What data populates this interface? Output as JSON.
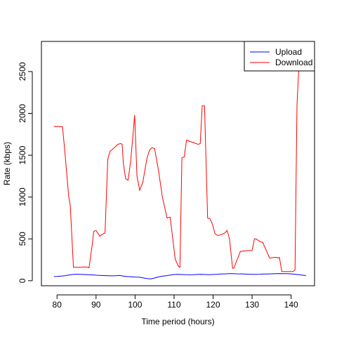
{
  "chart_data": {
    "type": "line",
    "title": "",
    "xlabel": "Time period (hours)",
    "ylabel": "Rate (kbps)",
    "xlim": [
      76,
      146
    ],
    "ylim": [
      -60,
      2860
    ],
    "xticks": [
      80,
      90,
      100,
      110,
      120,
      130,
      140
    ],
    "yticks": [
      0,
      500,
      1000,
      1500,
      2000,
      2500
    ],
    "legend_position": "top-right",
    "grid": false,
    "series": [
      {
        "name": "Upload",
        "color": "#0000ff",
        "x": [
          79.2,
          80,
          81,
          82,
          83,
          84,
          85,
          86,
          87,
          88,
          89,
          90,
          91,
          92,
          93,
          94,
          95,
          96,
          97,
          98,
          99,
          100,
          101,
          102,
          103,
          104,
          105,
          106,
          107,
          108,
          109,
          110,
          111,
          112,
          113,
          114,
          115,
          116,
          117,
          118,
          119,
          120,
          121,
          122,
          123,
          124,
          125,
          126,
          127,
          128,
          129,
          130,
          131,
          132,
          133,
          134,
          135,
          136,
          137,
          138,
          139,
          140,
          141,
          142,
          143,
          143.8
        ],
        "y": [
          50,
          52,
          55,
          60,
          68,
          75,
          78,
          76,
          74,
          72,
          70,
          66,
          64,
          62,
          60,
          58,
          60,
          64,
          55,
          50,
          47,
          44,
          42,
          34,
          26,
          22,
          32,
          46,
          54,
          60,
          68,
          74,
          76,
          74,
          72,
          71,
          72,
          75,
          76,
          74,
          72,
          74,
          77,
          80,
          82,
          84,
          85,
          83,
          82,
          80,
          78,
          76,
          77,
          78,
          80,
          81,
          83,
          84,
          86,
          85,
          84,
          82,
          78,
          72,
          66,
          62
        ]
      },
      {
        "name": "Download",
        "color": "#ff0000",
        "x": [
          79.2,
          79.6,
          80,
          81.4,
          82,
          83,
          83.4,
          84.2,
          85,
          86,
          87,
          87.6,
          88.2,
          89,
          89.4,
          90,
          91,
          91.4,
          92.3,
          93,
          93.6,
          94,
          95.6,
          96.3,
          96.7,
          97,
          97.6,
          98.2,
          98.8,
          99.4,
          99.9,
          100.5,
          101.2,
          102,
          103,
          103.7,
          104.3,
          105,
          106,
          107,
          108.2,
          109,
          109.8,
          110.3,
          111,
          111.5,
          112,
          112.6,
          113.2,
          116.2,
          116.7,
          117.2,
          117.8,
          118.6,
          119.2,
          119.8,
          120.5,
          121.2,
          122,
          123,
          123.6,
          124.2,
          125,
          125.3,
          127,
          129,
          129.6,
          130,
          130.6,
          131,
          132.3,
          132.7,
          134.5,
          135.8,
          136.3,
          136.6,
          137,
          137.6,
          139.2,
          140.5,
          141,
          141.5,
          142,
          142.4
        ],
        "y": [
          1850,
          1840,
          1845,
          1840,
          1550,
          1000,
          900,
          160,
          160,
          160,
          165,
          165,
          155,
          420,
          590,
          600,
          530,
          550,
          570,
          1450,
          1550,
          1560,
          1630,
          1640,
          1630,
          1400,
          1220,
          1200,
          1400,
          1700,
          1980,
          1250,
          1080,
          1180,
          1450,
          1560,
          1590,
          1580,
          1320,
          1000,
          750,
          760,
          450,
          260,
          180,
          160,
          1470,
          1480,
          1680,
          1630,
          1640,
          2090,
          2090,
          750,
          740,
          680,
          560,
          540,
          550,
          570,
          600,
          500,
          150,
          150,
          350,
          360,
          360,
          360,
          500,
          500,
          460,
          460,
          270,
          280,
          280,
          270,
          280,
          110,
          110,
          110,
          130,
          2100,
          2580,
          2860
        ]
      }
    ]
  }
}
